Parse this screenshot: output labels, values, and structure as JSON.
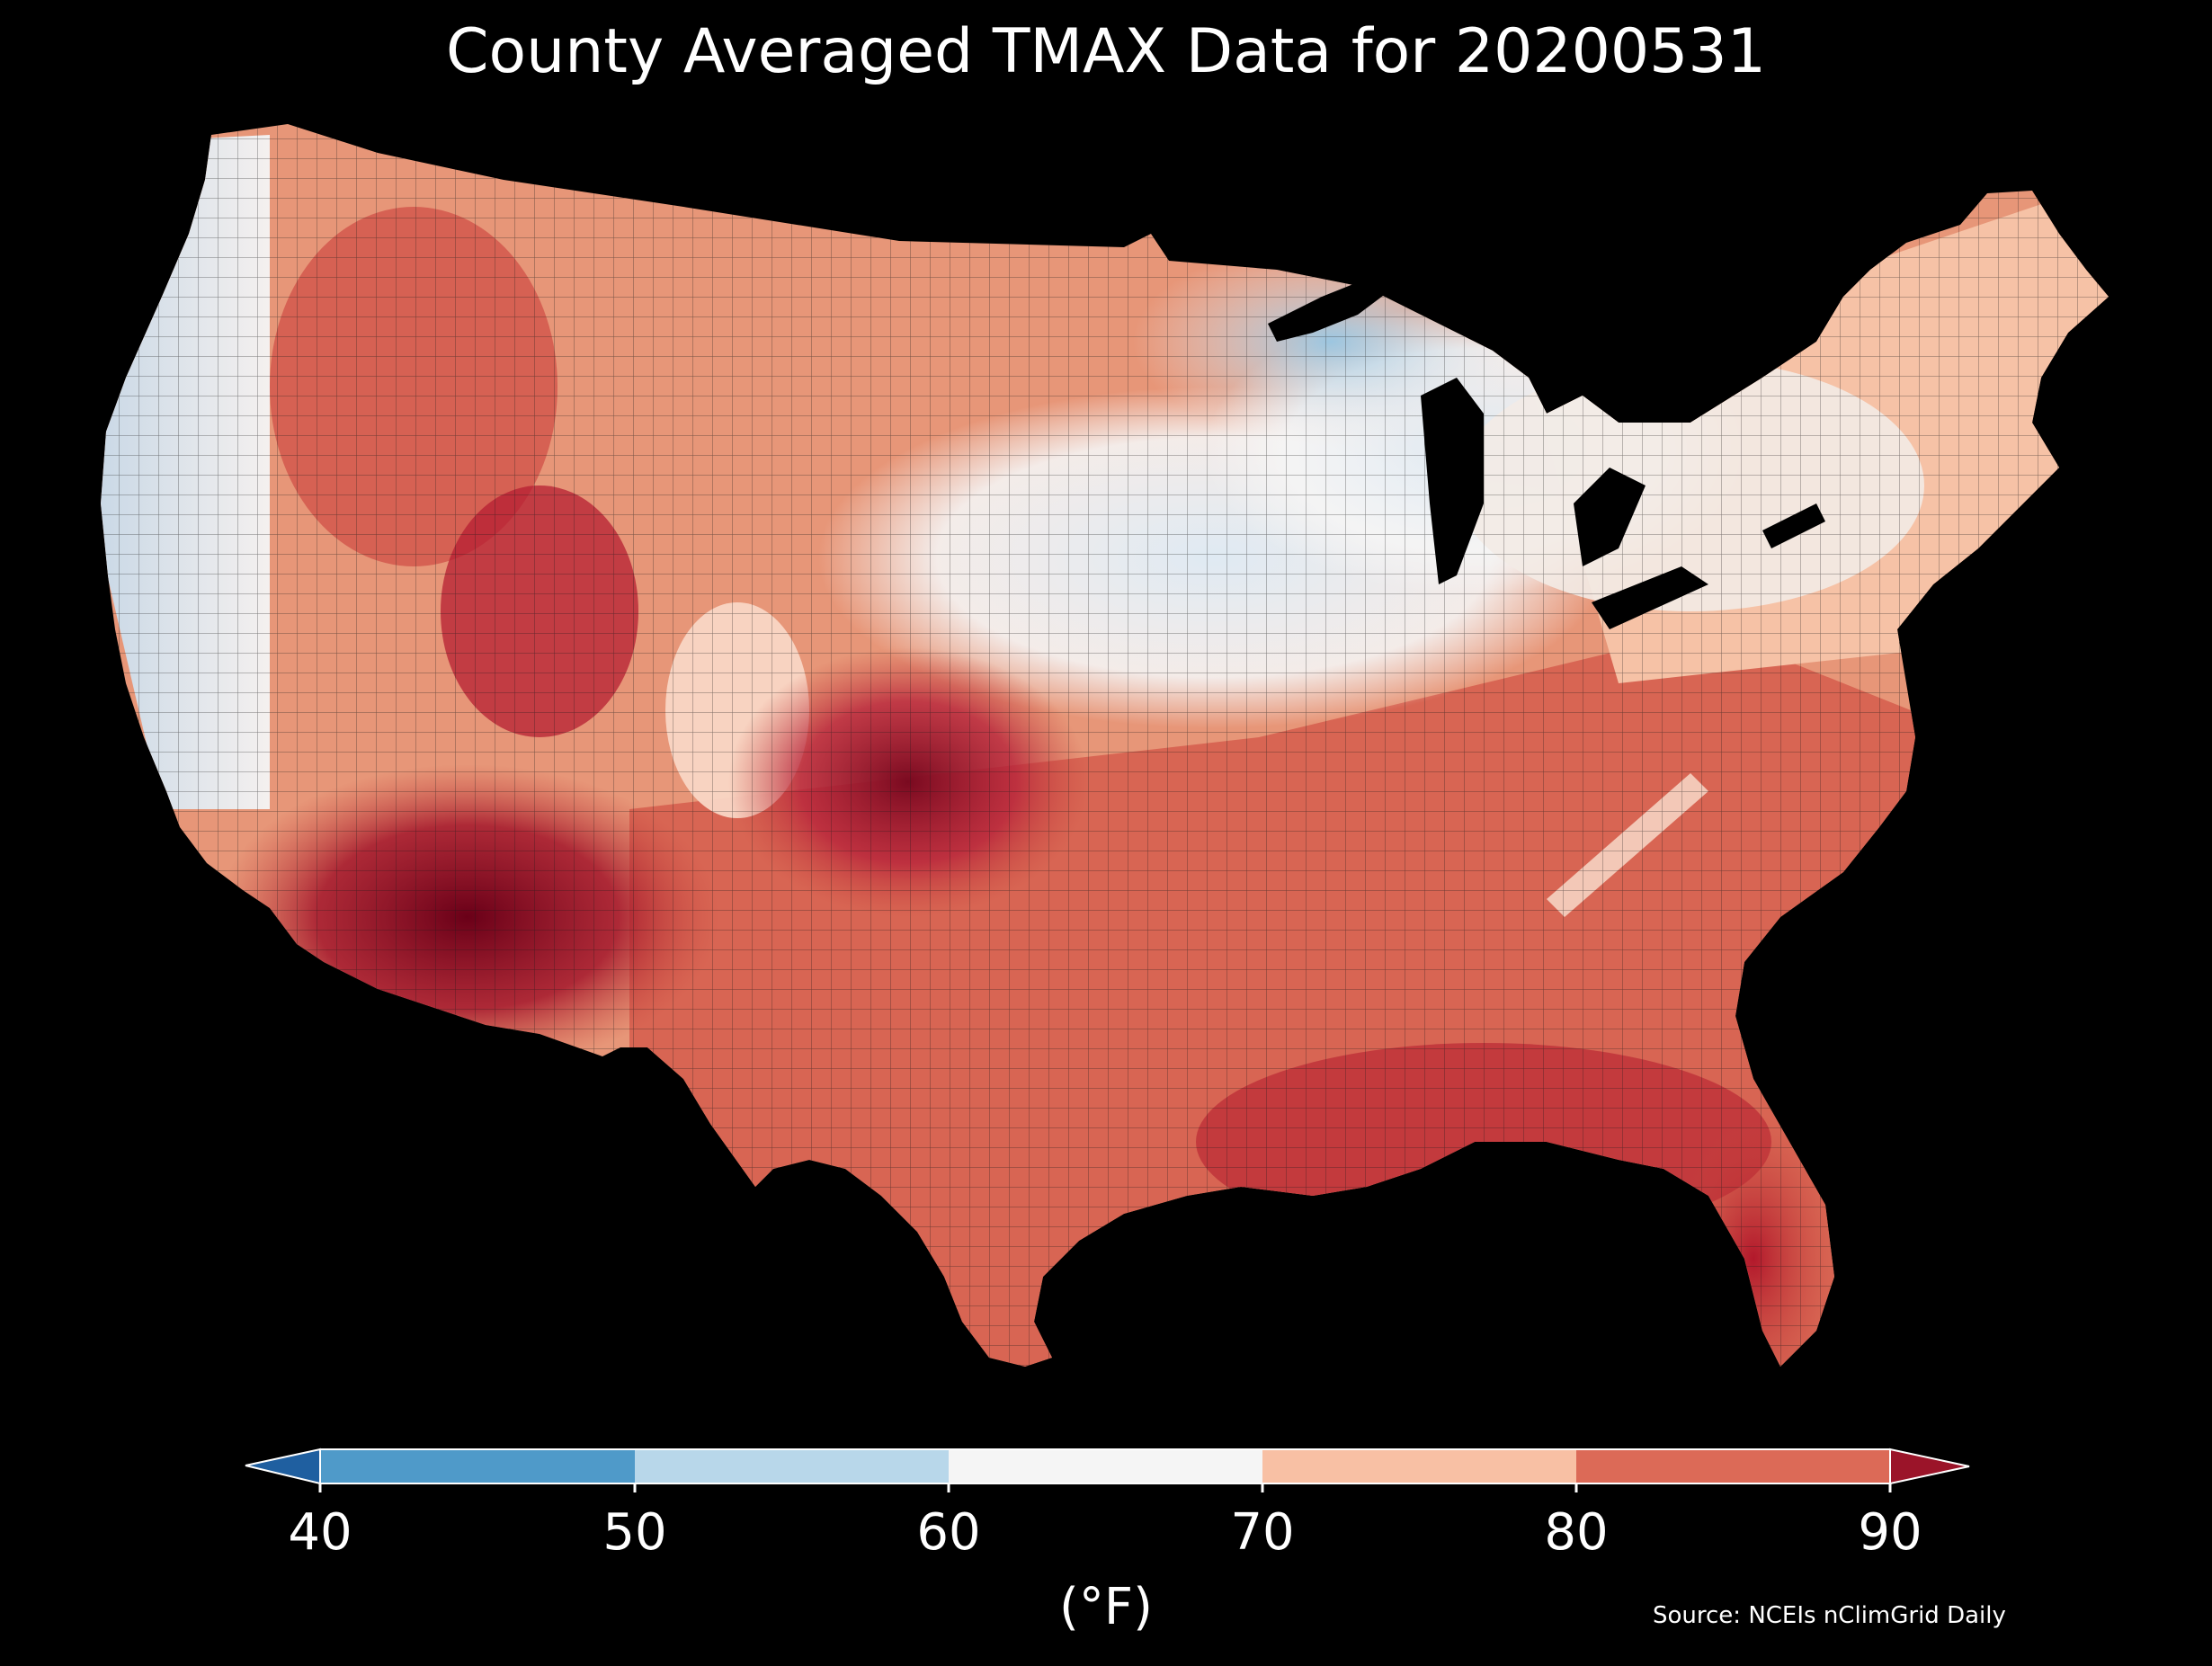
{
  "title": "County Averaged TMAX Data for 20200531",
  "colorbar": {
    "ticks": [
      "40",
      "50",
      "60",
      "70",
      "80",
      "90"
    ],
    "unit": "(°F)",
    "bins": [
      {
        "from": 40,
        "to": 50,
        "color": "#4f9ac9"
      },
      {
        "from": 50,
        "to": 60,
        "color": "#b8d7ea"
      },
      {
        "from": 60,
        "to": 70,
        "color": "#f5f5f5"
      },
      {
        "from": 70,
        "to": 80,
        "color": "#f8c0a4"
      },
      {
        "from": 80,
        "to": 90,
        "color": "#dc6a57"
      }
    ],
    "under_color": "#1f5fa0",
    "over_color": "#9b1429"
  },
  "source": "Source: NCEIs nClimGrid Daily",
  "map_region": "Contiguous United States counties"
}
